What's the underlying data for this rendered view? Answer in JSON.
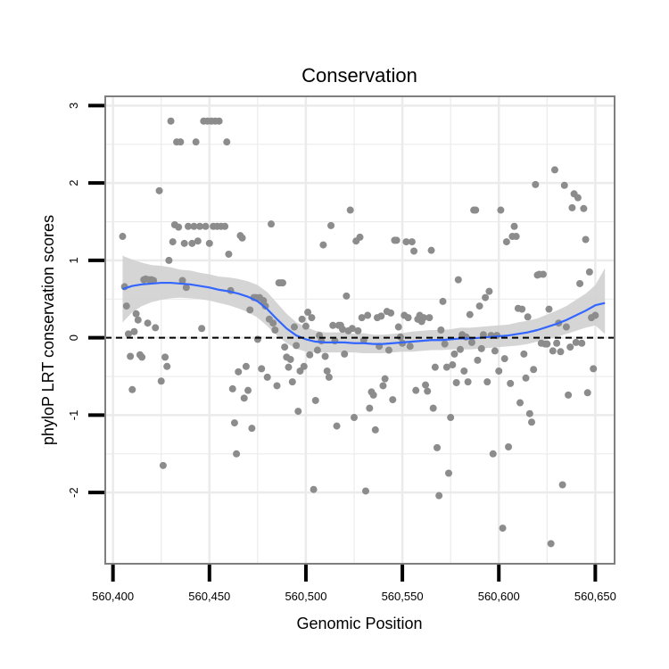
{
  "chart_data": {
    "type": "scatter",
    "title": "Conservation",
    "xlabel": "Genomic Position",
    "ylabel": "phyloP LRT conservation scores",
    "xlim": [
      560396,
      560660
    ],
    "ylim": [
      -2.92,
      3.12
    ],
    "x_ticks": [
      560400,
      560450,
      560500,
      560550,
      560600,
      560650
    ],
    "x_tick_labels": [
      "560,400",
      "560,450",
      "560,500",
      "560,550",
      "560,600",
      "560,650"
    ],
    "y_ticks": [
      -2,
      -1,
      0,
      1,
      2,
      3
    ],
    "y_tick_labels": [
      "-2",
      "-1",
      "0",
      "1",
      "2",
      "3"
    ],
    "grid": true,
    "reference_line": {
      "y": 0,
      "style": "dashed"
    },
    "colors": {
      "points": "#8c8c8c",
      "smooth_line": "#3366ff",
      "confidence_band": "#d0d0d0",
      "panel_border": "#7f7f7f",
      "grid": "#ebebeb"
    },
    "series": [
      {
        "points": [
          [
            560405,
            1.31
          ],
          [
            560406,
            0.66
          ],
          [
            560407,
            0.41
          ],
          [
            560408,
            0.05
          ],
          [
            560409,
            -0.24
          ],
          [
            560410,
            -0.67
          ],
          [
            560411,
            0.08
          ],
          [
            560412,
            0.31
          ],
          [
            560413,
            0.23
          ],
          [
            560414,
            -0.22
          ],
          [
            560415,
            -0.25
          ],
          [
            560416,
            0.75
          ],
          [
            560417,
            0.76
          ],
          [
            560418,
            0.19
          ],
          [
            560419,
            0.75
          ],
          [
            560420,
            0.75
          ],
          [
            560421,
            0.74
          ],
          [
            560422,
            0.13
          ],
          [
            560424,
            1.9
          ],
          [
            560425,
            -0.56
          ],
          [
            560426,
            -1.65
          ],
          [
            560427,
            -0.25
          ],
          [
            560428,
            -0.37
          ],
          [
            560429,
            1.0
          ],
          [
            560430,
            2.8
          ],
          [
            560431,
            1.24
          ],
          [
            560432,
            1.46
          ],
          [
            560433,
            2.53
          ],
          [
            560434,
            1.43
          ],
          [
            560435,
            2.53
          ],
          [
            560436,
            0.74
          ],
          [
            560437,
            1.22
          ],
          [
            560438,
            0.65
          ],
          [
            560439,
            1.44
          ],
          [
            560441,
            1.22
          ],
          [
            560442,
            1.44
          ],
          [
            560443,
            2.53
          ],
          [
            560444,
            1.25
          ],
          [
            560445,
            1.44
          ],
          [
            560446,
            0.12
          ],
          [
            560447,
            2.8
          ],
          [
            560448,
            1.44
          ],
          [
            560449,
            2.8
          ],
          [
            560450,
            1.22
          ],
          [
            560451,
            2.8
          ],
          [
            560452,
            1.44
          ],
          [
            560453,
            2.8
          ],
          [
            560454,
            1.44
          ],
          [
            560455,
            2.8
          ],
          [
            560456,
            1.44
          ],
          [
            560458,
            1.44
          ],
          [
            560459,
            2.53
          ],
          [
            560460,
            1.08
          ],
          [
            560461,
            0.61
          ],
          [
            560462,
            -0.66
          ],
          [
            560463,
            -1.1
          ],
          [
            560464,
            -1.5
          ],
          [
            560465,
            -0.44
          ],
          [
            560466,
            1.32
          ],
          [
            560467,
            1.29
          ],
          [
            560468,
            -0.78
          ],
          [
            560469,
            -0.37
          ],
          [
            560470,
            -0.68
          ],
          [
            560471,
            0.36
          ],
          [
            560472,
            -1.17
          ],
          [
            560473,
            0.52
          ],
          [
            560474,
            0.52
          ],
          [
            560475,
            -0.02
          ],
          [
            560476,
            0.52
          ],
          [
            560477,
            -0.4
          ],
          [
            560478,
            0.48
          ],
          [
            560479,
            0.41
          ],
          [
            560480,
            -0.51
          ],
          [
            560481,
            0.24
          ],
          [
            560482,
            1.47
          ],
          [
            560483,
            0.19
          ],
          [
            560484,
            0.1
          ],
          [
            560485,
            -0.62
          ],
          [
            560486,
            0.71
          ],
          [
            560487,
            0.71
          ],
          [
            560488,
            0.71
          ],
          [
            560489,
            -0.12
          ],
          [
            560490,
            -0.25
          ],
          [
            560491,
            -0.38
          ],
          [
            560492,
            -0.28
          ],
          [
            560493,
            -0.57
          ],
          [
            560494,
            0.14
          ],
          [
            560495,
            -0.1
          ],
          [
            560496,
            -0.95
          ],
          [
            560497,
            -0.43
          ],
          [
            560498,
            0.24
          ],
          [
            560499,
            -0.37
          ],
          [
            560500,
            0.15
          ],
          [
            560501,
            0.33
          ],
          [
            560502,
            -0.22
          ],
          [
            560503,
            0.26
          ],
          [
            560504,
            -1.96
          ],
          [
            560505,
            -0.81
          ],
          [
            560506,
            -0.16
          ],
          [
            560507,
            0.03
          ],
          [
            560508,
            -0.04
          ],
          [
            560509,
            1.2
          ],
          [
            560510,
            -0.24
          ],
          [
            560511,
            -0.43
          ],
          [
            560512,
            -0.51
          ],
          [
            560513,
            1.45
          ],
          [
            560514,
            0.16
          ],
          [
            560515,
            -0.04
          ],
          [
            560516,
            -1.14
          ],
          [
            560517,
            0.16
          ],
          [
            560518,
            0.16
          ],
          [
            560519,
            0.11
          ],
          [
            560520,
            -0.21
          ],
          [
            560521,
            0.54
          ],
          [
            560522,
            0.09
          ],
          [
            560523,
            1.65
          ],
          [
            560524,
            0.12
          ],
          [
            560525,
            -1.03
          ],
          [
            560526,
            1.25
          ],
          [
            560527,
            0.09
          ],
          [
            560528,
            1.3
          ],
          [
            560529,
            0.26
          ],
          [
            560530,
            -0.03
          ],
          [
            560531,
            -1.98
          ],
          [
            560532,
            0.29
          ],
          [
            560533,
            -0.91
          ],
          [
            560534,
            -0.7
          ],
          [
            560535,
            -0.74
          ],
          [
            560536,
            -1.19
          ],
          [
            560537,
            0.26
          ],
          [
            560538,
            -0.11
          ],
          [
            560539,
            0.28
          ],
          [
            560540,
            -0.62
          ],
          [
            560541,
            -0.53
          ],
          [
            560542,
            0.34
          ],
          [
            560543,
            -0.16
          ],
          [
            560544,
            0.32
          ],
          [
            560545,
            -0.8
          ],
          [
            560546,
            1.26
          ],
          [
            560547,
            1.26
          ],
          [
            560548,
            0.14
          ],
          [
            560549,
            0.01
          ],
          [
            560550,
            -0.07
          ],
          [
            560551,
            0.29
          ],
          [
            560552,
            1.24
          ],
          [
            560553,
            0.26
          ],
          [
            560554,
            -0.11
          ],
          [
            560555,
            1.24
          ],
          [
            560556,
            1.12
          ],
          [
            560557,
            -0.68
          ],
          [
            560558,
            0.24
          ],
          [
            560559,
            0.29
          ],
          [
            560560,
            0.21
          ],
          [
            560561,
            0.26
          ],
          [
            560562,
            -0.61
          ],
          [
            560563,
            -0.69
          ],
          [
            560564,
            0.26
          ],
          [
            560565,
            1.13
          ],
          [
            560566,
            -0.91
          ],
          [
            560567,
            -0.38
          ],
          [
            560568,
            -1.42
          ],
          [
            560569,
            -2.04
          ],
          [
            560570,
            0.1
          ],
          [
            560571,
            0.47
          ],
          [
            560572,
            -0.08
          ],
          [
            560573,
            -0.38
          ],
          [
            560574,
            -1.75
          ],
          [
            560575,
            -1.03
          ],
          [
            560576,
            -0.35
          ],
          [
            560577,
            -0.21
          ],
          [
            560578,
            -0.58
          ],
          [
            560579,
            0.75
          ],
          [
            560580,
            -0.15
          ],
          [
            560581,
            0.04
          ],
          [
            560582,
            -0.43
          ],
          [
            560583,
            0.01
          ],
          [
            560584,
            -0.57
          ],
          [
            560585,
            0.3
          ],
          [
            560586,
            -0.06
          ],
          [
            560587,
            1.65
          ],
          [
            560588,
            1.65
          ],
          [
            560589,
            -0.29
          ],
          [
            560590,
            0.41
          ],
          [
            560591,
            -0.14
          ],
          [
            560592,
            0.04
          ],
          [
            560593,
            0.52
          ],
          [
            560594,
            -0.57
          ],
          [
            560595,
            0.6
          ],
          [
            560596,
            0.03
          ],
          [
            560597,
            -1.5
          ],
          [
            560598,
            -0.17
          ],
          [
            560599,
            0.03
          ],
          [
            560600,
            -0.43
          ],
          [
            560601,
            1.65
          ],
          [
            560602,
            -2.46
          ],
          [
            560603,
            -0.27
          ],
          [
            560604,
            1.24
          ],
          [
            560605,
            -1.41
          ],
          [
            560606,
            -0.59
          ],
          [
            560607,
            1.31
          ],
          [
            560608,
            1.44
          ],
          [
            560609,
            1.31
          ],
          [
            560610,
            0.38
          ],
          [
            560611,
            -0.84
          ],
          [
            560612,
            0.37
          ],
          [
            560613,
            -0.21
          ],
          [
            560614,
            -0.52
          ],
          [
            560615,
            0.27
          ],
          [
            560616,
            -0.98
          ],
          [
            560617,
            -1.09
          ],
          [
            560618,
            -0.41
          ],
          [
            560619,
            1.98
          ],
          [
            560620,
            0.81
          ],
          [
            560621,
            0.82
          ],
          [
            560622,
            -0.07
          ],
          [
            560623,
            0.82
          ],
          [
            560624,
            -0.08
          ],
          [
            560625,
            -0.08
          ],
          [
            560626,
            0.37
          ],
          [
            560627,
            -2.66
          ],
          [
            560628,
            -0.17
          ],
          [
            560629,
            2.17
          ],
          [
            560630,
            -0.07
          ],
          [
            560631,
            0.19
          ],
          [
            560632,
            -0.18
          ],
          [
            560633,
            -1.9
          ],
          [
            560634,
            1.97
          ],
          [
            560635,
            0.14
          ],
          [
            560636,
            -0.74
          ],
          [
            560637,
            -0.12
          ],
          [
            560638,
            1.68
          ],
          [
            560639,
            1.86
          ],
          [
            560640,
            -0.06
          ],
          [
            560641,
            1.81
          ],
          [
            560642,
            0.7
          ],
          [
            560643,
            -0.07
          ],
          [
            560644,
            1.67
          ],
          [
            560645,
            1.27
          ],
          [
            560646,
            -0.71
          ],
          [
            560647,
            0.85
          ],
          [
            560648,
            0.26
          ],
          [
            560649,
            -0.4
          ],
          [
            560650,
            0.29
          ]
        ]
      }
    ],
    "smooth": {
      "x": [
        560405,
        560410,
        560415,
        560420,
        560425,
        560430,
        560435,
        560440,
        560445,
        560450,
        560455,
        560460,
        560465,
        560470,
        560475,
        560480,
        560485,
        560490,
        560495,
        560500,
        560505,
        560510,
        560515,
        560520,
        560525,
        560530,
        560535,
        560540,
        560545,
        560550,
        560555,
        560560,
        560565,
        560570,
        560575,
        560580,
        560585,
        560590,
        560595,
        560600,
        560605,
        560610,
        560615,
        560620,
        560625,
        560630,
        560635,
        560640,
        560645,
        560650,
        560655
      ],
      "y": [
        0.63,
        0.67,
        0.69,
        0.7,
        0.71,
        0.71,
        0.7,
        0.69,
        0.67,
        0.65,
        0.62,
        0.6,
        0.57,
        0.53,
        0.47,
        0.37,
        0.24,
        0.12,
        0.03,
        -0.02,
        -0.05,
        -0.06,
        -0.06,
        -0.06,
        -0.07,
        -0.07,
        -0.08,
        -0.08,
        -0.07,
        -0.06,
        -0.05,
        -0.04,
        -0.03,
        -0.03,
        -0.02,
        -0.01,
        -0.01,
        0.0,
        0.01,
        0.02,
        0.03,
        0.05,
        0.07,
        0.1,
        0.14,
        0.18,
        0.23,
        0.29,
        0.35,
        0.42,
        0.45
      ],
      "lower": [
        0.2,
        0.33,
        0.41,
        0.46,
        0.49,
        0.51,
        0.52,
        0.51,
        0.5,
        0.48,
        0.45,
        0.42,
        0.38,
        0.33,
        0.26,
        0.15,
        0.03,
        -0.07,
        -0.14,
        -0.18,
        -0.19,
        -0.19,
        -0.19,
        -0.19,
        -0.19,
        -0.2,
        -0.2,
        -0.2,
        -0.19,
        -0.18,
        -0.18,
        -0.17,
        -0.16,
        -0.16,
        -0.15,
        -0.15,
        -0.15,
        -0.14,
        -0.13,
        -0.12,
        -0.11,
        -0.1,
        -0.08,
        -0.05,
        -0.02,
        0.01,
        0.05,
        0.09,
        0.13,
        0.16,
        0.05
      ],
      "upper": [
        1.06,
        1.01,
        0.97,
        0.94,
        0.93,
        0.91,
        0.88,
        0.87,
        0.84,
        0.82,
        0.79,
        0.78,
        0.76,
        0.73,
        0.68,
        0.59,
        0.45,
        0.31,
        0.2,
        0.14,
        0.09,
        0.07,
        0.07,
        0.07,
        0.05,
        0.06,
        0.04,
        0.04,
        0.05,
        0.06,
        0.08,
        0.09,
        0.1,
        0.1,
        0.11,
        0.13,
        0.13,
        0.14,
        0.15,
        0.16,
        0.17,
        0.2,
        0.22,
        0.25,
        0.3,
        0.35,
        0.41,
        0.49,
        0.57,
        0.68,
        0.9
      ]
    }
  }
}
